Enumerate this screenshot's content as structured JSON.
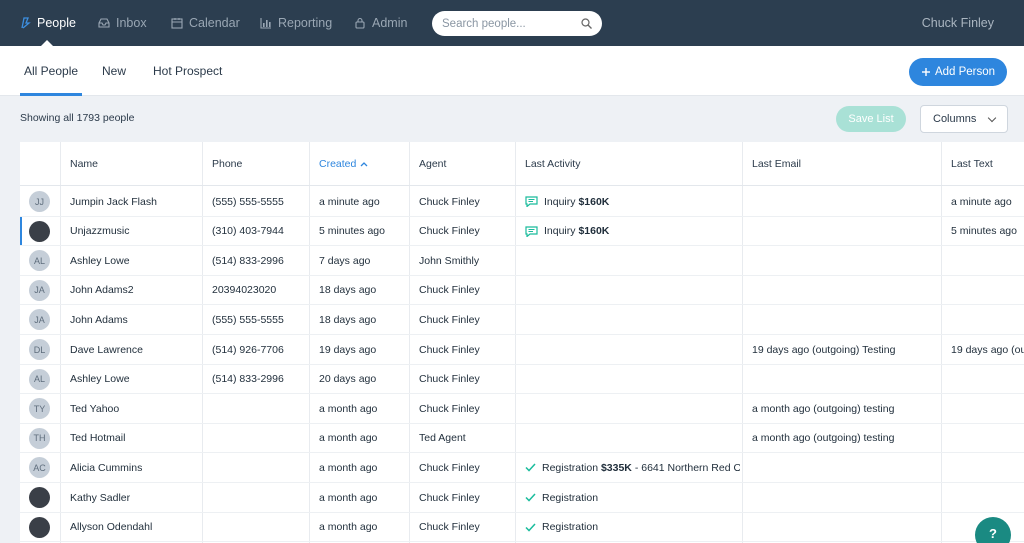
{
  "nav": {
    "items": [
      {
        "label": "People",
        "icon": "people-icon",
        "active": true
      },
      {
        "label": "Inbox",
        "icon": "inbox-icon"
      },
      {
        "label": "Calendar",
        "icon": "calendar-icon"
      },
      {
        "label": "Reporting",
        "icon": "reporting-icon"
      },
      {
        "label": "Admin",
        "icon": "lock-icon"
      }
    ],
    "search_placeholder": "Search people...",
    "user": "Chuck Finley"
  },
  "subbar": {
    "tabs": [
      {
        "label": "All People",
        "active": true
      },
      {
        "label": "New"
      },
      {
        "label": "Hot Prospect"
      }
    ],
    "add_label": "Add Person"
  },
  "toolbar": {
    "showing": "Showing all 1793 people",
    "save_label": "Save List",
    "columns_label": "Columns"
  },
  "table": {
    "columns": [
      "Name",
      "Phone",
      "Created",
      "Agent",
      "Last Activity",
      "Last Email",
      "Last Text"
    ],
    "sorted_column": "Created",
    "rows": [
      {
        "initials": "JJ",
        "photo": false,
        "name": "Jumpin Jack Flash",
        "phone": "(555) 555-5555",
        "created": "a minute ago",
        "agent": "Chuck Finley",
        "activity_type": "inquiry",
        "activity_label": "Inquiry",
        "activity_bold": "$160K",
        "activity_rest": "",
        "email": "",
        "text": "a minute ago"
      },
      {
        "initials": "",
        "photo": true,
        "name": "Unjazzmusic",
        "phone": "(310) 403-7944",
        "created": "5 minutes ago",
        "agent": "Chuck Finley",
        "activity_type": "inquiry",
        "activity_label": "Inquiry",
        "activity_bold": "$160K",
        "activity_rest": "",
        "email": "",
        "text": "5 minutes ago"
      },
      {
        "initials": "AL",
        "photo": false,
        "name": "Ashley Lowe",
        "phone": "(514) 833-2996",
        "created": "7 days ago",
        "agent": "John Smithly",
        "activity_type": "",
        "activity_label": "",
        "activity_bold": "",
        "activity_rest": "",
        "email": "",
        "text": ""
      },
      {
        "initials": "JA",
        "photo": false,
        "name": "John Adams2",
        "phone": "20394023020",
        "created": "18 days ago",
        "agent": "Chuck Finley",
        "activity_type": "",
        "activity_label": "",
        "activity_bold": "",
        "activity_rest": "",
        "email": "",
        "text": ""
      },
      {
        "initials": "JA",
        "photo": false,
        "name": "John Adams",
        "phone": "(555) 555-5555",
        "created": "18 days ago",
        "agent": "Chuck Finley",
        "activity_type": "",
        "activity_label": "",
        "activity_bold": "",
        "activity_rest": "",
        "email": "",
        "text": ""
      },
      {
        "initials": "DL",
        "photo": false,
        "name": "Dave Lawrence",
        "phone": "(514) 926-7706",
        "created": "19 days ago",
        "agent": "Chuck Finley",
        "activity_type": "",
        "activity_label": "",
        "activity_bold": "",
        "activity_rest": "",
        "email": "19 days ago (outgoing) Testing",
        "text": "19 days ago (ou"
      },
      {
        "initials": "AL",
        "photo": false,
        "name": "Ashley Lowe",
        "phone": "(514) 833-2996",
        "created": "20 days ago",
        "agent": "Chuck Finley",
        "activity_type": "",
        "activity_label": "",
        "activity_bold": "",
        "activity_rest": "",
        "email": "",
        "text": ""
      },
      {
        "initials": "TY",
        "photo": false,
        "name": "Ted Yahoo",
        "phone": "",
        "created": "a month ago",
        "agent": "Chuck Finley",
        "activity_type": "",
        "activity_label": "",
        "activity_bold": "",
        "activity_rest": "",
        "email": "a month ago (outgoing) testing",
        "text": ""
      },
      {
        "initials": "TH",
        "photo": false,
        "name": "Ted Hotmail",
        "phone": "",
        "created": "a month ago",
        "agent": "Ted Agent",
        "activity_type": "",
        "activity_label": "",
        "activity_bold": "",
        "activity_rest": "",
        "email": "a month ago (outgoing) testing",
        "text": ""
      },
      {
        "initials": "AC",
        "photo": false,
        "name": "Alicia Cummins",
        "phone": "",
        "created": "a month ago",
        "agent": "Chuck Finley",
        "activity_type": "registration",
        "activity_label": "Registration",
        "activity_bold": "$335K",
        "activity_rest": " - 6641 Northern Red O...",
        "email": "",
        "text": ""
      },
      {
        "initials": "",
        "photo": true,
        "name": "Kathy Sadler",
        "phone": "",
        "created": "a month ago",
        "agent": "Chuck Finley",
        "activity_type": "registration",
        "activity_label": "Registration",
        "activity_bold": "",
        "activity_rest": "",
        "email": "",
        "text": ""
      },
      {
        "initials": "",
        "photo": true,
        "name": "Allyson Odendahl",
        "phone": "",
        "created": "a month ago",
        "agent": "Chuck Finley",
        "activity_type": "registration",
        "activity_label": "Registration",
        "activity_bold": "",
        "activity_rest": "",
        "email": "",
        "text": ""
      }
    ]
  },
  "help_label": "?",
  "colors": {
    "nav_bg": "#2c3e50",
    "accent": "#2e86de",
    "save_disabled": "#a9e1d6",
    "activity_icon": "#1abc9c"
  }
}
